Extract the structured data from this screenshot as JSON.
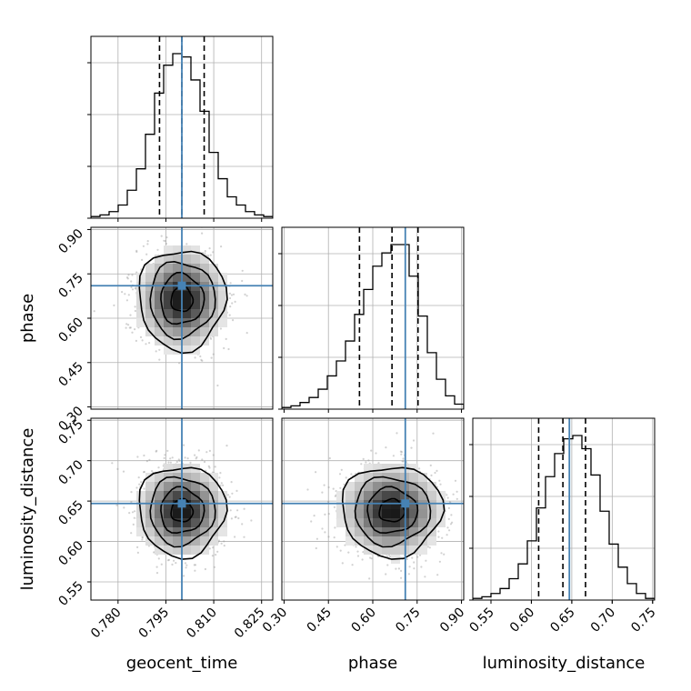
{
  "chart_data": {
    "type": "corner",
    "parameters": [
      "geocent_time",
      "phase",
      "luminosity_distance"
    ],
    "ranges": {
      "geocent_time": [
        0.7715,
        0.8285
      ],
      "phase": [
        0.2925,
        0.9075
      ],
      "luminosity_distance": [
        0.5275,
        0.7525
      ]
    },
    "ticks": {
      "geocent_time": [
        "0.780",
        "0.795",
        "0.810",
        "0.825"
      ],
      "phase": [
        "0.30",
        "0.45",
        "0.60",
        "0.75",
        "0.90"
      ],
      "luminosity_distance": [
        "0.55",
        "0.60",
        "0.65",
        "0.70",
        "0.75"
      ]
    },
    "truths": {
      "geocent_time": 0.8,
      "phase": 0.71,
      "luminosity_distance": 0.647
    },
    "quantiles": {
      "geocent_time": [
        0.793,
        0.8,
        0.807
      ],
      "phase": [
        0.555,
        0.665,
        0.753
      ],
      "luminosity_distance": [
        0.609,
        0.639,
        0.667
      ]
    },
    "histograms": {
      "geocent_time": [
        1,
        2,
        4,
        8,
        17,
        30,
        51,
        76,
        93,
        100,
        98,
        84,
        65,
        40,
        24,
        13,
        8,
        4,
        2,
        1
      ],
      "phase": [
        1,
        2,
        4,
        7,
        12,
        20,
        29,
        41,
        57,
        72,
        86,
        94,
        99,
        99,
        80,
        56,
        34,
        18,
        8,
        3
      ],
      "luminosity_distance": [
        1,
        2,
        4,
        7,
        13,
        22,
        36,
        56,
        75,
        89,
        98,
        100,
        92,
        76,
        54,
        34,
        20,
        10,
        4,
        1
      ]
    },
    "histogram_bins": 20,
    "histogram_color": "#000000",
    "truth_color": "#4682b4",
    "quantile_style": "dashed",
    "grid": true,
    "title": ""
  }
}
